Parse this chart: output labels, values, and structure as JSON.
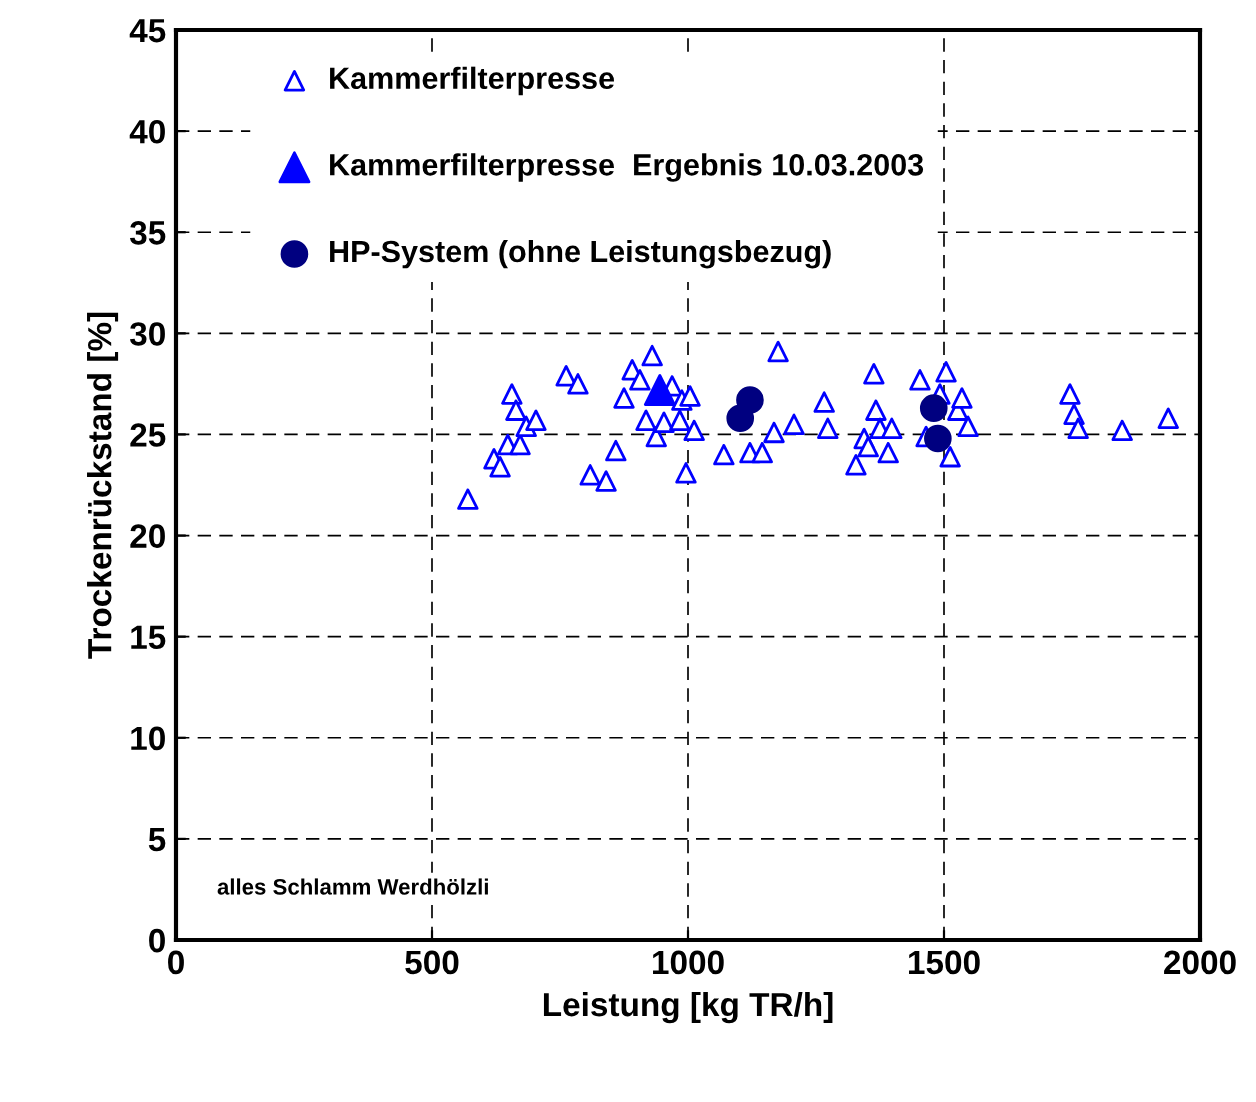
{
  "chart_data": {
    "type": "scatter",
    "xlabel": "Leistung [kg TR/h]",
    "ylabel": "Trockenrückstand [%]",
    "xlim": [
      0,
      2000
    ],
    "xticks": [
      0,
      500,
      1000,
      1500,
      2000
    ],
    "ylim": [
      0,
      45
    ],
    "yticks": [
      0,
      5,
      10,
      15,
      20,
      25,
      30,
      35,
      40,
      45
    ],
    "grid": true,
    "legend": "top left",
    "annotations": [
      "alles Schlamm Werdhölzli"
    ],
    "series": [
      {
        "name": "Kammerfilterpresse",
        "color": "#0000ff",
        "marker": "triangle",
        "x": [
          570,
          621,
          633,
          648,
          656,
          664,
          672,
          684,
          703,
          762,
          785,
          809,
          840,
          859,
          875,
          891,
          906,
          918,
          930,
          938,
          953,
          969,
          984,
          988,
          996,
          1004,
          1012,
          1070,
          1121,
          1145,
          1168,
          1176,
          1207,
          1266,
          1273,
          1328,
          1344,
          1352,
          1363,
          1367,
          1375,
          1391,
          1398,
          1453,
          1465,
          1492,
          1504,
          1512,
          1527,
          1535,
          1547,
          1746,
          1754,
          1762,
          1848,
          1938
        ],
        "values": [
          21.8,
          23.8,
          23.4,
          24.5,
          27.0,
          26.2,
          24.5,
          25.4,
          25.7,
          27.9,
          27.5,
          23.0,
          22.7,
          24.2,
          26.8,
          28.2,
          27.7,
          25.7,
          28.9,
          24.9,
          25.6,
          27.4,
          25.7,
          26.7,
          23.1,
          26.9,
          25.2,
          24.0,
          24.1,
          24.1,
          25.1,
          29.1,
          25.5,
          26.6,
          25.3,
          23.5,
          24.8,
          24.4,
          28.0,
          26.2,
          25.3,
          24.1,
          25.3,
          27.7,
          24.9,
          27.0,
          28.1,
          23.9,
          26.2,
          26.8,
          25.4,
          27.0,
          26.0,
          25.3,
          25.2,
          25.8
        ]
      },
      {
        "name": "Kammerfilterpresse  Ergebnis 10.03.2003",
        "color": "#0000ff",
        "marker": "triangle",
        "x": [
          945
        ],
        "values": [
          27.2
        ]
      },
      {
        "name": "HP-System (ohne Leistungsbezug)",
        "color": "#000080",
        "marker": "circle",
        "x": [
          1102,
          1121,
          1480,
          1488
        ],
        "values": [
          25.8,
          26.7,
          26.3,
          24.8
        ]
      }
    ]
  }
}
